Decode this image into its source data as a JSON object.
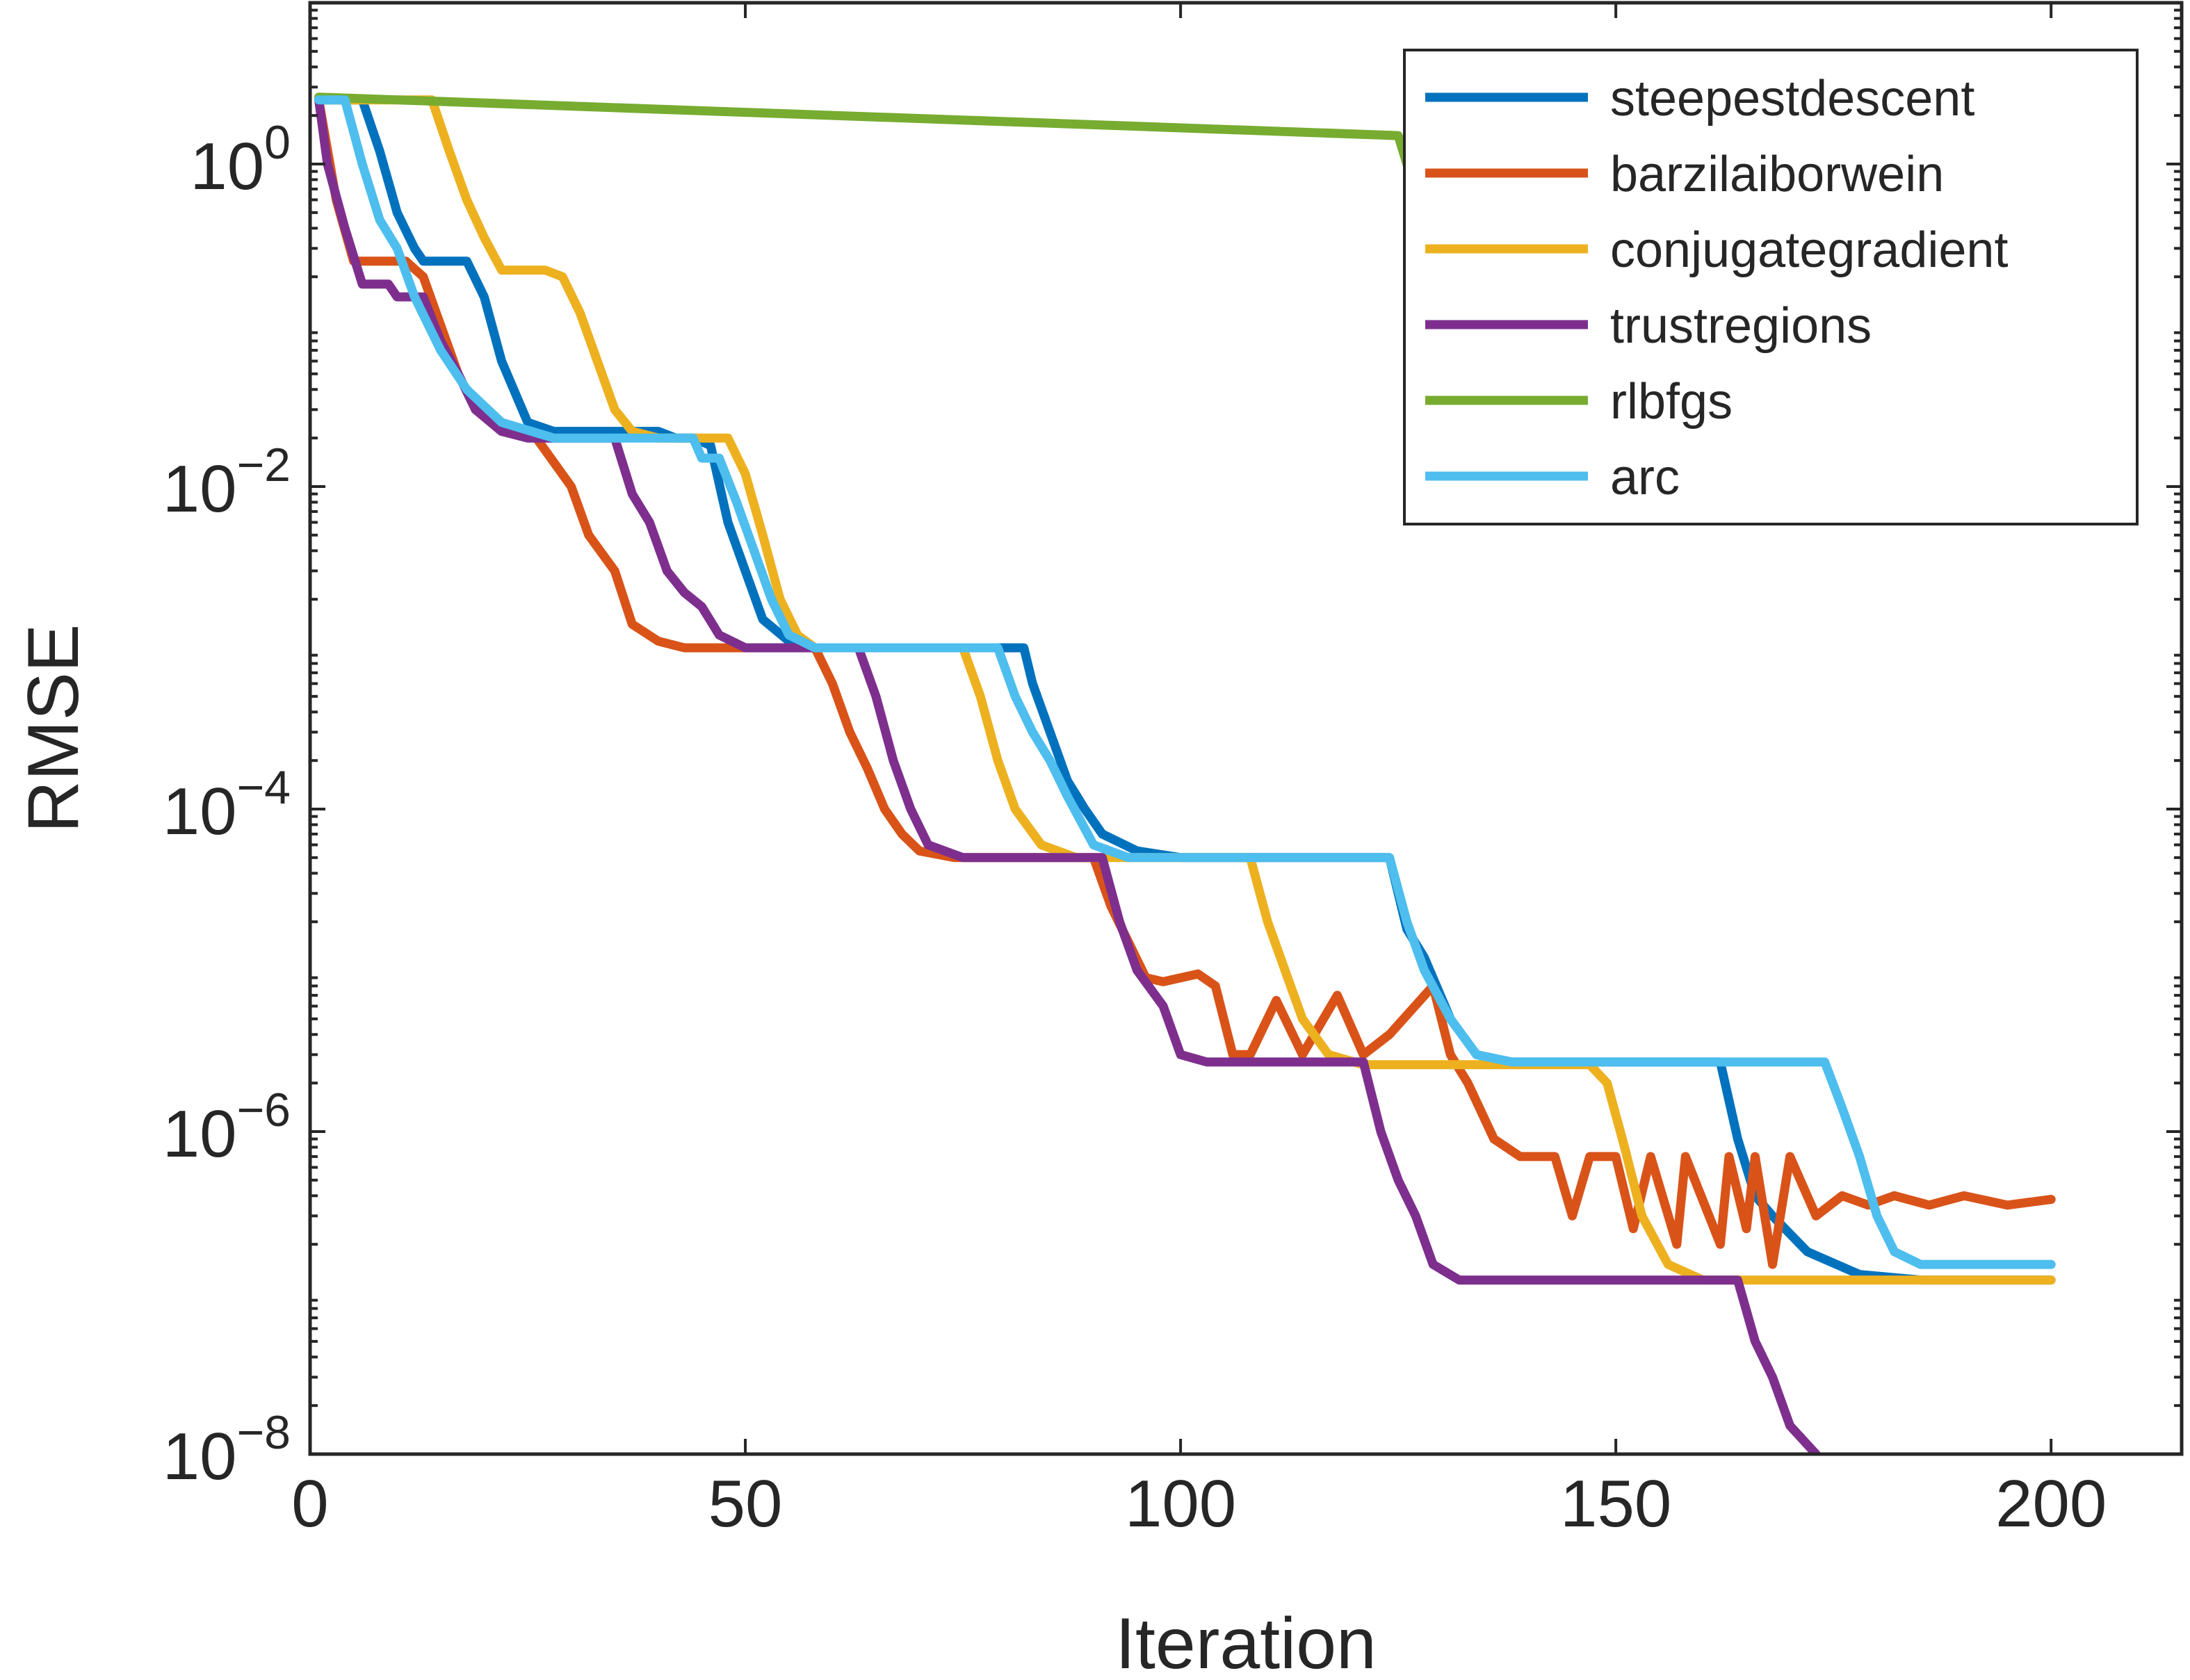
{
  "chart_data": {
    "type": "line",
    "xlabel": "Iteration",
    "ylabel": "RMSE",
    "xscale": "linear",
    "yscale": "log",
    "xlim": [
      0,
      215
    ],
    "ylim": [
      1e-08,
      10
    ],
    "xticks": [
      0,
      50,
      100,
      150,
      200
    ],
    "xtick_labels": [
      "0",
      "50",
      "100",
      "150",
      "200"
    ],
    "yticks": [
      {
        "value": 1,
        "base": "10",
        "exp": "0"
      },
      {
        "value": 0.01,
        "base": "10",
        "exp": "−2"
      },
      {
        "value": 0.0001,
        "base": "10",
        "exp": "−4"
      },
      {
        "value": 1e-06,
        "base": "10",
        "exp": "−6"
      },
      {
        "value": 1e-08,
        "base": "10",
        "exp": "−8"
      }
    ],
    "grid": false,
    "box": true,
    "legend_position": "top-right",
    "series": [
      {
        "name": "steepestdescent",
        "color": "#0072BD",
        "points": [
          [
            1,
            2.5
          ],
          [
            6,
            2.5
          ],
          [
            8,
            1.2
          ],
          [
            10,
            0.5
          ],
          [
            12,
            0.3
          ],
          [
            13,
            0.25
          ],
          [
            18,
            0.25
          ],
          [
            20,
            0.15
          ],
          [
            22,
            0.06
          ],
          [
            25,
            0.025
          ],
          [
            28,
            0.022
          ],
          [
            40,
            0.022
          ],
          [
            42,
            0.02
          ],
          [
            44,
            0.02
          ],
          [
            46,
            0.018
          ],
          [
            48,
            0.006
          ],
          [
            50,
            0.003
          ],
          [
            52,
            0.0015
          ],
          [
            55,
            0.0011
          ],
          [
            58,
            0.001
          ],
          [
            80,
            0.001
          ],
          [
            82,
            0.001
          ],
          [
            83,
            0.0006
          ],
          [
            85,
            0.0003
          ],
          [
            87,
            0.00015
          ],
          [
            89,
            0.0001
          ],
          [
            91,
            7e-05
          ],
          [
            95,
            5.5e-05
          ],
          [
            100,
            5e-05
          ],
          [
            124,
            5e-05
          ],
          [
            126,
            1.8e-05
          ],
          [
            128,
            1.2e-05
          ],
          [
            131,
            5e-06
          ],
          [
            134,
            3e-06
          ],
          [
            138,
            2.7e-06
          ],
          [
            160,
            2.7e-06
          ],
          [
            162,
            2.7e-06
          ],
          [
            164,
            9e-07
          ],
          [
            166,
            4e-07
          ],
          [
            168,
            3e-07
          ],
          [
            172,
            1.8e-07
          ],
          [
            178,
            1.3e-07
          ],
          [
            185,
            1.2e-07
          ],
          [
            200,
            1.2e-07
          ]
        ]
      },
      {
        "name": "barzilaiborwein",
        "color": "#D95319",
        "points": [
          [
            1,
            2.5
          ],
          [
            3,
            0.6
          ],
          [
            5,
            0.25
          ],
          [
            8,
            0.25
          ],
          [
            11,
            0.25
          ],
          [
            13,
            0.2
          ],
          [
            15,
            0.1
          ],
          [
            17,
            0.05
          ],
          [
            19,
            0.03
          ],
          [
            22,
            0.022
          ],
          [
            26,
            0.02
          ],
          [
            30,
            0.01
          ],
          [
            32,
            0.005
          ],
          [
            35,
            0.003
          ],
          [
            37,
            0.0014
          ],
          [
            40,
            0.0011
          ],
          [
            43,
            0.001
          ],
          [
            58,
            0.001
          ],
          [
            60,
            0.0006
          ],
          [
            62,
            0.0003
          ],
          [
            64,
            0.00018
          ],
          [
            66,
            0.0001
          ],
          [
            68,
            7e-05
          ],
          [
            70,
            5.5e-05
          ],
          [
            74,
            5e-05
          ],
          [
            90,
            5e-05
          ],
          [
            92,
            2.5e-05
          ],
          [
            94,
            1.5e-05
          ],
          [
            96,
            9e-06
          ],
          [
            98,
            8.5e-06
          ],
          [
            102,
            9.5e-06
          ],
          [
            104,
            8e-06
          ],
          [
            106,
            3e-06
          ],
          [
            108,
            3e-06
          ],
          [
            111,
            6.5e-06
          ],
          [
            114,
            3e-06
          ],
          [
            118,
            7e-06
          ],
          [
            121,
            3e-06
          ],
          [
            124,
            4e-06
          ],
          [
            129,
            8e-06
          ],
          [
            131,
            3e-06
          ],
          [
            133,
            2e-06
          ],
          [
            136,
            9e-07
          ],
          [
            139,
            7e-07
          ],
          [
            143,
            7e-07
          ],
          [
            145,
            3e-07
          ],
          [
            147,
            7e-07
          ],
          [
            150,
            7e-07
          ],
          [
            152,
            2.5e-07
          ],
          [
            154,
            7e-07
          ],
          [
            157,
            2e-07
          ],
          [
            158,
            7e-07
          ],
          [
            162,
            2e-07
          ],
          [
            163,
            7e-07
          ],
          [
            165,
            2.5e-07
          ],
          [
            166,
            7e-07
          ],
          [
            168,
            1.5e-07
          ],
          [
            170,
            7e-07
          ],
          [
            173,
            3e-07
          ],
          [
            176,
            4e-07
          ],
          [
            179,
            3.5e-07
          ],
          [
            182,
            4e-07
          ],
          [
            186,
            3.5e-07
          ],
          [
            190,
            4e-07
          ],
          [
            195,
            3.5e-07
          ],
          [
            200,
            3.8e-07
          ]
        ]
      },
      {
        "name": "conjugategradient",
        "color": "#EDB120",
        "points": [
          [
            1,
            2.5
          ],
          [
            14,
            2.5
          ],
          [
            16,
            1.2
          ],
          [
            18,
            0.6
          ],
          [
            20,
            0.35
          ],
          [
            22,
            0.22
          ],
          [
            27,
            0.22
          ],
          [
            29,
            0.2
          ],
          [
            31,
            0.12
          ],
          [
            33,
            0.06
          ],
          [
            35,
            0.03
          ],
          [
            37,
            0.022
          ],
          [
            40,
            0.02
          ],
          [
            46,
            0.02
          ],
          [
            48,
            0.02
          ],
          [
            50,
            0.012
          ],
          [
            52,
            0.005
          ],
          [
            54,
            0.002
          ],
          [
            56,
            0.0012
          ],
          [
            58,
            0.001
          ],
          [
            75,
            0.001
          ],
          [
            77,
            0.0005
          ],
          [
            79,
            0.0002
          ],
          [
            81,
            0.0001
          ],
          [
            84,
            6e-05
          ],
          [
            88,
            5e-05
          ],
          [
            108,
            5e-05
          ],
          [
            110,
            2e-05
          ],
          [
            112,
            1e-05
          ],
          [
            114,
            5e-06
          ],
          [
            117,
            3e-06
          ],
          [
            121,
            2.6e-06
          ],
          [
            147,
            2.6e-06
          ],
          [
            149,
            2e-06
          ],
          [
            151,
            8e-07
          ],
          [
            153,
            3e-07
          ],
          [
            156,
            1.5e-07
          ],
          [
            160,
            1.2e-07
          ],
          [
            200,
            1.2e-07
          ]
        ]
      },
      {
        "name": "trustregions",
        "color": "#7E2F8E",
        "points": [
          [
            1,
            2.5
          ],
          [
            2,
            1
          ],
          [
            4,
            0.4
          ],
          [
            6,
            0.18
          ],
          [
            9,
            0.18
          ],
          [
            10,
            0.15
          ],
          [
            13,
            0.15
          ],
          [
            15,
            0.08
          ],
          [
            17,
            0.05
          ],
          [
            19,
            0.03
          ],
          [
            22,
            0.022
          ],
          [
            25,
            0.02
          ],
          [
            35,
            0.02
          ],
          [
            37,
            0.009
          ],
          [
            39,
            0.006
          ],
          [
            41,
            0.003
          ],
          [
            43,
            0.0022
          ],
          [
            45,
            0.0018
          ],
          [
            47,
            0.0012
          ],
          [
            50,
            0.001
          ],
          [
            63,
            0.001
          ],
          [
            65,
            0.0005
          ],
          [
            67,
            0.0002
          ],
          [
            69,
            0.0001
          ],
          [
            71,
            6e-05
          ],
          [
            75,
            5e-05
          ],
          [
            91,
            5e-05
          ],
          [
            93,
            2e-05
          ],
          [
            95,
            1e-05
          ],
          [
            98,
            6e-06
          ],
          [
            100,
            3e-06
          ],
          [
            103,
            2.7e-06
          ],
          [
            121,
            2.7e-06
          ],
          [
            123,
            1e-06
          ],
          [
            125,
            5e-07
          ],
          [
            127,
            3e-07
          ],
          [
            129,
            1.5e-07
          ],
          [
            132,
            1.2e-07
          ],
          [
            164,
            1.2e-07
          ],
          [
            166,
            5e-08
          ],
          [
            168,
            3e-08
          ],
          [
            170,
            1.5e-08
          ],
          [
            173,
            1e-08
          ]
        ]
      },
      {
        "name": "rlbfgs",
        "color": "#77AC30",
        "points": [
          [
            1,
            2.6
          ],
          [
            125,
            1.5
          ],
          [
            126,
            1.0
          ]
        ]
      },
      {
        "name": "arc",
        "color": "#4DBEEE",
        "points": [
          [
            1,
            2.5
          ],
          [
            4,
            2.5
          ],
          [
            6,
            1
          ],
          [
            8,
            0.45
          ],
          [
            10,
            0.3
          ],
          [
            12,
            0.15
          ],
          [
            15,
            0.07
          ],
          [
            18,
            0.04
          ],
          [
            22,
            0.025
          ],
          [
            28,
            0.02
          ],
          [
            44,
            0.02
          ],
          [
            45,
            0.015
          ],
          [
            47,
            0.015
          ],
          [
            49,
            0.008
          ],
          [
            51,
            0.004
          ],
          [
            53,
            0.002
          ],
          [
            55,
            0.0012
          ],
          [
            58,
            0.001
          ],
          [
            79,
            0.001
          ],
          [
            81,
            0.0005
          ],
          [
            83,
            0.0003
          ],
          [
            85,
            0.0002
          ],
          [
            87,
            0.00012
          ],
          [
            90,
            6e-05
          ],
          [
            94,
            5e-05
          ],
          [
            124,
            5e-05
          ],
          [
            126,
            2e-05
          ],
          [
            128,
            1e-05
          ],
          [
            131,
            5e-06
          ],
          [
            134,
            3e-06
          ],
          [
            138,
            2.7e-06
          ],
          [
            174,
            2.7e-06
          ],
          [
            176,
            1.4e-06
          ],
          [
            178,
            7e-07
          ],
          [
            180,
            3e-07
          ],
          [
            182,
            1.8e-07
          ],
          [
            185,
            1.5e-07
          ],
          [
            200,
            1.5e-07
          ]
        ]
      }
    ]
  }
}
